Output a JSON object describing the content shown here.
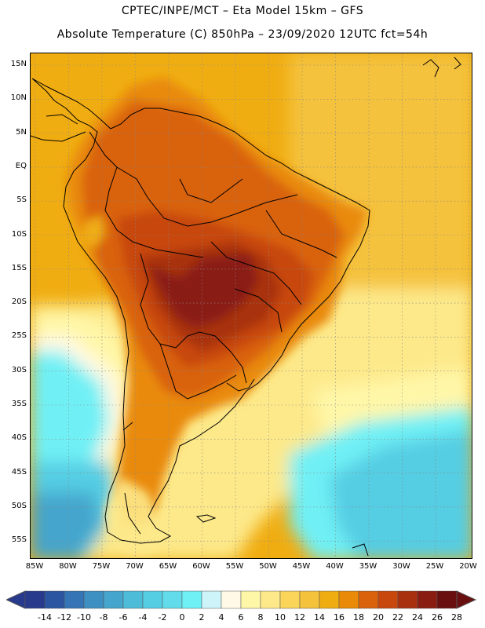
{
  "title_line1": "CPTEC/INPE/MCT –  Eta Model 15km – GFS",
  "title_line2": "Absolute Temperature (C) 850hPa – 23/09/2020 12UTC fct=54h",
  "lat_labels": [
    "15N",
    "10N",
    "5N",
    "EQ",
    "5S",
    "10S",
    "15S",
    "20S",
    "25S",
    "30S",
    "35S",
    "40S",
    "45S",
    "50S",
    "55S"
  ],
  "lon_labels": [
    "85W",
    "80W",
    "75W",
    "70W",
    "65W",
    "60W",
    "55W",
    "50W",
    "45W",
    "40W",
    "35W",
    "30W",
    "25W",
    "20W"
  ],
  "colorbar": {
    "labels": [
      "-14",
      "-12",
      "-10",
      "-8",
      "-6",
      "-4",
      "-2",
      "0",
      "2",
      "4",
      "6",
      "8",
      "10",
      "12",
      "14",
      "16",
      "18",
      "20",
      "22",
      "24",
      "26",
      "28"
    ],
    "colors": [
      "#283a8c",
      "#2b55a0",
      "#3575b5",
      "#3e8fc2",
      "#45a5cc",
      "#4dbcd8",
      "#55cde3",
      "#62dcea",
      "#6ff0f5",
      "#cdf4f8",
      "#fff9e6",
      "#fff7a8",
      "#fde98a",
      "#fbd55a",
      "#f5c23c",
      "#f0ad12",
      "#e98a08",
      "#d9620a",
      "#c7470d",
      "#a8300f",
      "#8a1d12",
      "#6a0f10"
    ]
  },
  "map": {
    "ocean_colors": {
      "warm_tropics": "#f0ad12",
      "light_tropics": "#f5c23c",
      "pale": "#fde98a",
      "very_pale": "#fff7a8",
      "cream": "#fff9e6",
      "cyan": "#6ff0f5",
      "light_blue": "#55cde3",
      "blue": "#45a5cc"
    },
    "land_colors": {
      "hot": "#8a1d12",
      "warm": "#a8300f",
      "mid": "#c7470d",
      "orange": "#d9620a",
      "light": "#e98a08",
      "andes_cool": "#f0ad12",
      "patagonia": "#fde98a"
    }
  }
}
